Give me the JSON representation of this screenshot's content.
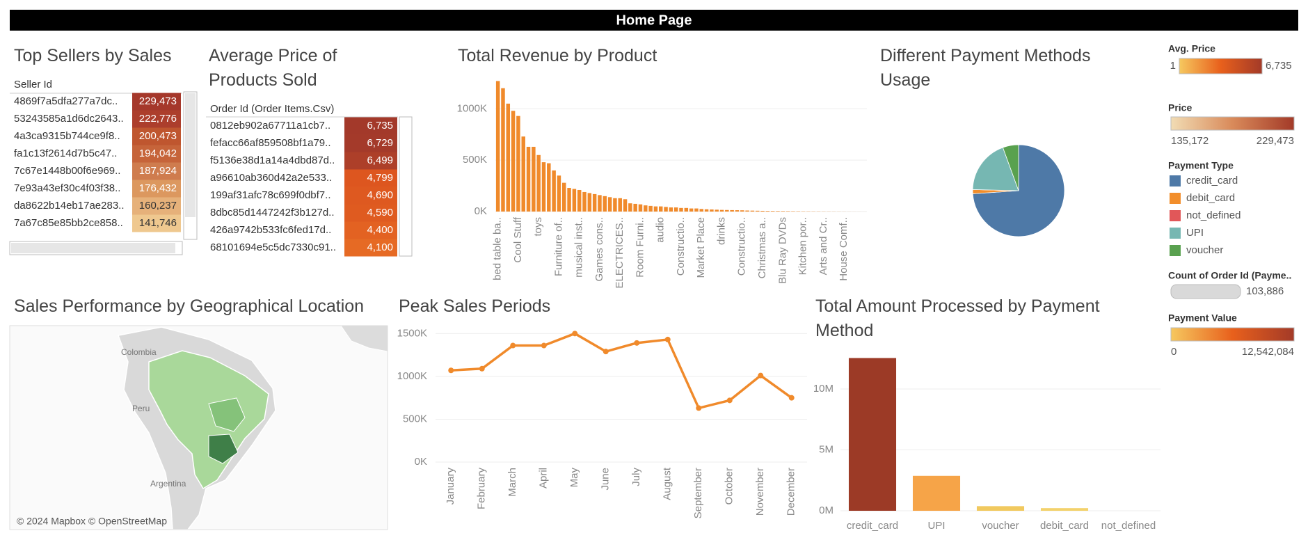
{
  "header": {
    "title": "Home Page"
  },
  "tables": [
    {
      "title": "Top Sellers by Sales",
      "column": "Seller Id",
      "rows": [
        [
          "4869f7a5dfa277a7dc..",
          "229,473"
        ],
        [
          "53243585a1d6dc2643..",
          "222,776"
        ],
        [
          "4a3ca9315b744ce9f8..",
          "200,473"
        ],
        [
          "fa1c13f2614d7b5c47..",
          "194,042"
        ],
        [
          "7c67e1448b00f6e969..",
          "187,924"
        ],
        [
          "7e93a43ef30c4f03f38..",
          "176,432"
        ],
        [
          "da8622b14eb17ae283..",
          "160,237"
        ],
        [
          "7a67c85e85bb2ce858..",
          "141,746"
        ]
      ],
      "colors": [
        "#a5382b",
        "#ac3e2c",
        "#bf562f",
        "#c6643a",
        "#cf7c4e",
        "#dc985f",
        "#e6b17a",
        "#efc88f"
      ]
    },
    {
      "title": "Average Price of Products Sold",
      "column": "Order Id (Order Items.Csv)",
      "rows": [
        [
          "0812eb902a67711a1cb7..",
          "6,735"
        ],
        [
          "fefacc66af859508bf1a79..",
          "6,729"
        ],
        [
          "f5136e38d1a14a4dbd87d..",
          "6,499"
        ],
        [
          "a96610ab360d42a2e533..",
          "4,799"
        ],
        [
          "199af31afc78c699f0dbf7..",
          "4,690"
        ],
        [
          "8dbc85d1447242f3b127d..",
          "4,590"
        ],
        [
          "426a9742b533fc6fed17d..",
          "4,400"
        ],
        [
          "68101694e5c5dc7330c91..",
          "4,100"
        ]
      ],
      "colors": [
        "#a3392a",
        "#a43a2a",
        "#ad3f29",
        "#dd561f",
        "#de5920",
        "#df5b20",
        "#e36222",
        "#e66a24"
      ]
    }
  ],
  "chart_data": [
    {
      "type": "bar",
      "title": "Total Revenue by Product",
      "color": "#f08a2b",
      "grid": true,
      "categories": [
        "bed table ba..",
        null,
        null,
        null,
        "Cool Stuff",
        null,
        null,
        null,
        "toys",
        null,
        null,
        null,
        "Furniture of..",
        null,
        null,
        null,
        "musical inst..",
        null,
        null,
        null,
        "Games cons..",
        null,
        null,
        null,
        "ELECTRICES..",
        null,
        null,
        null,
        "Room Furni..",
        null,
        null,
        null,
        "audio",
        null,
        null,
        null,
        "Constructio..",
        null,
        null,
        null,
        "Market Place",
        null,
        null,
        null,
        "drinks",
        null,
        null,
        null,
        "Constructio..",
        null,
        null,
        null,
        "Christmas a..",
        null,
        null,
        null,
        "Blu Ray DVDs",
        null,
        null,
        null,
        "Kitchen por..",
        null,
        null,
        null,
        "Arts and Cr..",
        null,
        null,
        null,
        "House Comf..",
        null,
        null,
        null,
        null
      ],
      "values": [
        1270000,
        1200000,
        1050000,
        980000,
        930000,
        730000,
        630000,
        630000,
        550000,
        480000,
        470000,
        400000,
        350000,
        280000,
        230000,
        220000,
        210000,
        190000,
        180000,
        170000,
        160000,
        150000,
        140000,
        130000,
        130000,
        120000,
        80000,
        75000,
        70000,
        60000,
        55000,
        50000,
        50000,
        45000,
        40000,
        40000,
        35000,
        35000,
        30000,
        30000,
        25000,
        22000,
        20000,
        18000,
        16000,
        15000,
        14000,
        13000,
        12000,
        10000,
        9000,
        8000,
        7000,
        6000,
        5500,
        5000,
        4500,
        4000,
        3500,
        3000,
        2500,
        2200,
        2000,
        1800,
        1500,
        1300,
        1100,
        900,
        700,
        500,
        400,
        300,
        200
      ],
      "ylim": [
        0,
        1300000
      ],
      "yticks": [
        {
          "value": 0,
          "label": "0K"
        },
        {
          "value": 500000,
          "label": "500K"
        },
        {
          "value": 1000000,
          "label": "1000K"
        }
      ]
    },
    {
      "type": "pie",
      "title": "Different Payment Methods Usage",
      "legend_title": "Payment Type",
      "categories": [
        "credit_card",
        "debit_card",
        "not_defined",
        "UPI",
        "voucher"
      ],
      "values": [
        76795,
        1529,
        3,
        19784,
        5775
      ],
      "colors": [
        "#4e79a7",
        "#f28e2b",
        "#e15759",
        "#76b7b2",
        "#59a14f"
      ]
    },
    {
      "type": "line",
      "title": "Peak Sales Periods",
      "color": "#f08a2b",
      "grid": true,
      "categories": [
        "January",
        "February",
        "March",
        "April",
        "May",
        "June",
        "July",
        "August",
        "September",
        "October",
        "November",
        "December"
      ],
      "values": [
        1070000,
        1090000,
        1360000,
        1360000,
        1500000,
        1290000,
        1390000,
        1430000,
        630000,
        720000,
        1010000,
        750000
      ],
      "ylim": [
        0,
        1600000
      ],
      "yticks": [
        {
          "value": 0,
          "label": "0K"
        },
        {
          "value": 500000,
          "label": "500K"
        },
        {
          "value": 1000000,
          "label": "1000K"
        },
        {
          "value": 1500000,
          "label": "1500K"
        }
      ]
    },
    {
      "type": "bar",
      "title": "Total Amount Processed by Payment Method",
      "grid": true,
      "categories": [
        "credit_card",
        "UPI",
        "voucher",
        "debit_card",
        "not_defined"
      ],
      "values": [
        12542084,
        2869361,
        379437,
        217990,
        0
      ],
      "colors": [
        "#9c3a26",
        "#f6a448",
        "#f1c95f",
        "#f3d26c",
        "#f7e39a"
      ],
      "ylim": [
        0,
        12800000
      ],
      "yticks": [
        {
          "value": 0,
          "label": "0M"
        },
        {
          "value": 5000000,
          "label": "5M"
        },
        {
          "value": 10000000,
          "label": "10M"
        }
      ]
    }
  ],
  "map": {
    "title": "Sales Performance by Geographical Location",
    "labels": [
      "Colombia",
      "Peru",
      "Argentina"
    ],
    "attribution": "© 2024 Mapbox © OpenStreetMap"
  },
  "legends": [
    {
      "title": "Avg. Price",
      "min": "1",
      "max": "6,735",
      "colors": [
        "#f6c85f",
        "#e8601c",
        "#a33a28"
      ]
    },
    {
      "title": "Price",
      "min": "135,172",
      "max": "229,473",
      "colors": [
        "#f1dcb4",
        "#d98a5a",
        "#a33a28"
      ]
    },
    {
      "title": "Count of Order Id (Payme..",
      "value": "103,886",
      "color": "#d9d9d9"
    },
    {
      "title": "Payment Value",
      "min": "0",
      "max": "12,542,084",
      "colors": [
        "#f6c85f",
        "#e8601c",
        "#a33a28"
      ]
    }
  ]
}
